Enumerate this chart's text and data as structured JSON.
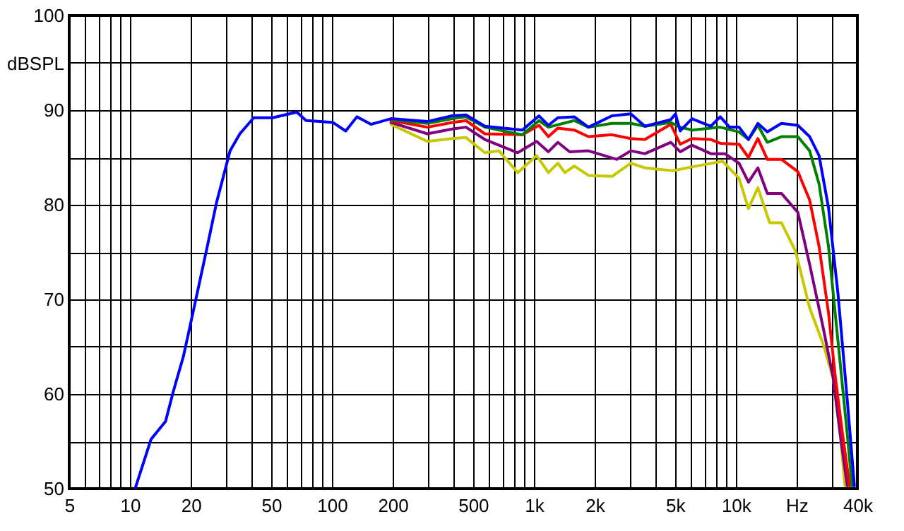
{
  "chart_data": {
    "type": "line",
    "ylabel": "dBSPL",
    "log": "x",
    "grid": true,
    "line_style": "solid",
    "marker": "none",
    "xlim": [
      5,
      40000
    ],
    "ylim": [
      50,
      100
    ],
    "xticks": [
      5,
      {
        "value": 6,
        "label": null
      },
      {
        "value": 7,
        "label": null
      },
      {
        "value": 8,
        "label": null
      },
      {
        "value": 9,
        "label": null
      },
      10,
      20,
      {
        "value": 30,
        "label": null
      },
      {
        "value": 40,
        "label": null
      },
      50,
      {
        "value": 60,
        "label": null
      },
      {
        "value": 70,
        "label": null
      },
      {
        "value": 80,
        "label": null
      },
      {
        "value": 90,
        "label": null
      },
      100,
      200,
      {
        "value": 300,
        "label": null
      },
      {
        "value": 400,
        "label": null
      },
      500,
      {
        "value": 600,
        "label": null
      },
      {
        "value": 700,
        "label": null
      },
      {
        "value": 800,
        "label": null
      },
      {
        "value": 900,
        "label": null
      },
      {
        "value": 1000,
        "label": "1k"
      },
      {
        "value": 2000,
        "label": "2k"
      },
      {
        "value": 3000,
        "label": null
      },
      {
        "value": 4000,
        "label": null
      },
      {
        "value": 5000,
        "label": "5k"
      },
      {
        "value": 6000,
        "label": null
      },
      {
        "value": 7000,
        "label": null
      },
      {
        "value": 8000,
        "label": null
      },
      {
        "value": 9000,
        "label": null
      },
      {
        "value": 10000,
        "label": "10k"
      },
      {
        "value": 20000,
        "label": "Hz"
      },
      {
        "value": 30000,
        "label": null
      },
      {
        "value": 40000,
        "label": "40k"
      }
    ],
    "yticks": [
      50,
      {
        "value": 55,
        "label": null
      },
      60,
      {
        "value": 65,
        "label": null
      },
      70,
      {
        "value": 75,
        "label": null
      },
      80,
      {
        "value": 85,
        "label": null
      },
      90,
      {
        "value": 95,
        "label": null
      },
      100
    ],
    "series": [
      {
        "color": "#0000ff",
        "x": [
          10.6,
          12.7,
          15,
          16.4,
          18.4,
          20.6,
          24.2,
          26.8,
          31.3,
          35,
          41,
          50.8,
          67,
          74.5,
          87.5,
          101,
          117,
          133,
          156,
          196,
          297,
          393,
          461,
          572,
          878,
          1060,
          1180,
          1314,
          1585,
          1863,
          2436,
          3019,
          3547,
          4764,
          5027,
          5305,
          6066,
          7521,
          8371,
          9322,
          10375,
          11550,
          12860,
          14320,
          16820,
          20290,
          23210,
          25840,
          28770,
          32030,
          35660,
          38650
        ],
        "values": [
          50,
          55.2,
          57.1,
          60.3,
          64,
          68.8,
          75.7,
          80.2,
          85.7,
          87.5,
          89.2,
          89.2,
          89.8,
          88.9,
          88.8,
          88.7,
          87.8,
          89.3,
          88.5,
          89.1,
          88.8,
          89.4,
          89.5,
          88.3,
          87.9,
          89.4,
          88.4,
          89.2,
          89.3,
          88.2,
          89.4,
          89.6,
          88.3,
          89.0,
          89.6,
          87.8,
          89.1,
          88.3,
          89.3,
          88.2,
          88.2,
          86.9,
          88.6,
          87.7,
          88.6,
          88.4,
          87.2,
          85.2,
          79.7,
          70.7,
          59.3,
          50.3
        ]
      },
      {
        "color": "#008000",
        "x": [
          196,
          297,
          393,
          461,
          572,
          878,
          1060,
          1180,
          1585,
          1863,
          2436,
          3019,
          3547,
          4764,
          5305,
          6066,
          8371,
          10375,
          11550,
          12860,
          14320,
          16820,
          20290,
          23210,
          25840,
          28770,
          32030,
          35660,
          37620
        ],
        "values": [
          89.0,
          88.6,
          89.1,
          89.3,
          88.2,
          87.4,
          88.9,
          88.2,
          88.9,
          88.2,
          88.6,
          88.6,
          88.3,
          88.7,
          88.2,
          87.9,
          88.2,
          87.7,
          86.9,
          88.4,
          86.6,
          87.2,
          87.2,
          85.7,
          82.2,
          75.6,
          65.7,
          55.7,
          50.3
        ]
      },
      {
        "color": "#ff0000",
        "x": [
          196,
          297,
          393,
          461,
          572,
          878,
          1060,
          1180,
          1314,
          1585,
          1863,
          2436,
          3019,
          3547,
          4764,
          5305,
          6066,
          7521,
          8371,
          10375,
          11550,
          12860,
          14320,
          16820,
          20290,
          23210,
          25840,
          28770,
          31180,
          33790,
          36620
        ],
        "values": [
          88.9,
          88.2,
          88.7,
          88.9,
          87.5,
          87.4,
          88.4,
          87.2,
          88.1,
          87.9,
          87.2,
          87.4,
          87.0,
          86.9,
          88.5,
          86.4,
          87.0,
          86.9,
          86.5,
          86.4,
          85.0,
          87.0,
          84.8,
          84.8,
          83.5,
          80.5,
          75.6,
          68.6,
          61.6,
          55.7,
          50.3
        ]
      },
      {
        "color": "#800080",
        "x": [
          196,
          297,
          393,
          461,
          572,
          832,
          1032,
          1180,
          1314,
          1503,
          1863,
          2570,
          3019,
          3547,
          4764,
          5305,
          6066,
          7521,
          8834,
          10375,
          11550,
          12860,
          14320,
          16820,
          20290,
          23210,
          27270,
          30350,
          32900,
          35660
        ],
        "values": [
          88.7,
          87.5,
          88.0,
          88.2,
          86.9,
          85.5,
          86.7,
          85.6,
          86.6,
          85.6,
          85.7,
          84.8,
          85.7,
          85.4,
          86.6,
          85.6,
          86.3,
          85.4,
          85.4,
          84.4,
          82.4,
          83.9,
          81.2,
          81.2,
          79.2,
          73.7,
          66.7,
          61.7,
          55.7,
          50.3
        ]
      },
      {
        "color": "#c8c800",
        "x": [
          196,
          297,
          393,
          461,
          572,
          672,
          832,
          1032,
          1180,
          1314,
          1424,
          1585,
          1863,
          2436,
          3019,
          3547,
          4894,
          6066,
          8600,
          10375,
          11550,
          12860,
          14710,
          16820,
          19760,
          23210,
          27270,
          30350,
          32900,
          34710
        ],
        "values": [
          88.5,
          86.7,
          87.0,
          87.1,
          85.5,
          85.7,
          83.4,
          85.2,
          83.4,
          84.4,
          83.4,
          84.1,
          83.1,
          83.0,
          84.4,
          83.9,
          83.6,
          84.0,
          84.6,
          82.8,
          79.6,
          81.8,
          78.1,
          78.1,
          75.1,
          69.1,
          65.1,
          61.6,
          55.7,
          50.3
        ]
      }
    ]
  }
}
